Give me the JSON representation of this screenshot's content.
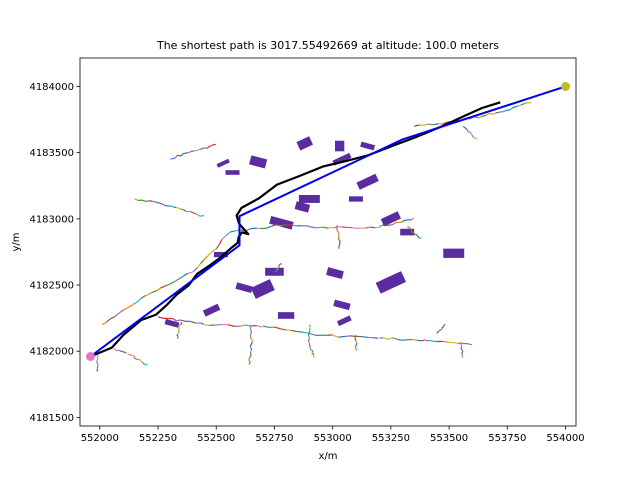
{
  "chart_data": {
    "type": "line",
    "title": "The shortest path is 3017.55492669 at altitude: 100.0 meters",
    "xlabel": "x/m",
    "ylabel": "y/m",
    "xlim": [
      551915,
      554045
    ],
    "ylim": [
      4181435,
      4184215
    ],
    "x_ticks": [
      552000,
      552250,
      552500,
      552750,
      553000,
      553250,
      553500,
      553750,
      554000
    ],
    "y_ticks": [
      4181500,
      4182000,
      4182500,
      4183000,
      4183500,
      4184000
    ],
    "colors": {
      "shortest_path": "#0000ee",
      "ground_route": "#000000",
      "buildings": "#5a2ca0",
      "start_marker": "#e377c2",
      "end_marker": "#bcbd22"
    },
    "series": [
      {
        "role": "shortest_path",
        "x": [
          551960,
          552600,
          552600,
          553300,
          554000
        ],
        "y": [
          4181960,
          4182800,
          4183020,
          4183600,
          4184000
        ]
      },
      {
        "role": "ground_route",
        "x": [
          551960,
          552050,
          552100,
          552180,
          552240,
          552290,
          552330,
          552380,
          552420,
          552470,
          552520,
          552560,
          552590,
          552600,
          552610,
          552640,
          552600,
          552590,
          552610,
          552680,
          552760,
          552850,
          552960,
          553060,
          553150,
          553260,
          553360,
          553470,
          553560,
          553640,
          553720
        ],
        "y": [
          4181960,
          4182030,
          4182130,
          4182230,
          4182280,
          4182350,
          4182430,
          4182500,
          4182580,
          4182650,
          4182700,
          4182780,
          4182820,
          4182860,
          4182900,
          4182880,
          4182960,
          4183020,
          4183080,
          4183160,
          4183260,
          4183320,
          4183400,
          4183440,
          4183480,
          4183560,
          4183620,
          4183700,
          4183780,
          4183840,
          4183880
        ]
      },
      {
        "role": "start_marker",
        "x": [
          551960
        ],
        "y": [
          4181960
        ]
      },
      {
        "role": "end_marker",
        "x": [
          554000
        ],
        "y": [
          4184000
        ]
      }
    ],
    "buildings": [
      {
        "cx": 552530,
        "cy": 4183420,
        "w": 55,
        "h": 30
      },
      {
        "cx": 552570,
        "cy": 4183350,
        "w": 60,
        "h": 35
      },
      {
        "cx": 552680,
        "cy": 4183430,
        "w": 70,
        "h": 70
      },
      {
        "cx": 552880,
        "cy": 4183570,
        "w": 60,
        "h": 70
      },
      {
        "cx": 553030,
        "cy": 4183550,
        "w": 40,
        "h": 80
      },
      {
        "cx": 553150,
        "cy": 4183550,
        "w": 60,
        "h": 40
      },
      {
        "cx": 553040,
        "cy": 4183450,
        "w": 80,
        "h": 40
      },
      {
        "cx": 552900,
        "cy": 4183150,
        "w": 90,
        "h": 60
      },
      {
        "cx": 552870,
        "cy": 4183090,
        "w": 60,
        "h": 60
      },
      {
        "cx": 553150,
        "cy": 4183280,
        "w": 90,
        "h": 60
      },
      {
        "cx": 553100,
        "cy": 4183150,
        "w": 60,
        "h": 40
      },
      {
        "cx": 552780,
        "cy": 4182970,
        "w": 100,
        "h": 60
      },
      {
        "cx": 553250,
        "cy": 4183000,
        "w": 80,
        "h": 60
      },
      {
        "cx": 553320,
        "cy": 4182900,
        "w": 60,
        "h": 50
      },
      {
        "cx": 552620,
        "cy": 4182480,
        "w": 70,
        "h": 50
      },
      {
        "cx": 552700,
        "cy": 4182470,
        "w": 90,
        "h": 90
      },
      {
        "cx": 552750,
        "cy": 4182600,
        "w": 80,
        "h": 60
      },
      {
        "cx": 553010,
        "cy": 4182590,
        "w": 70,
        "h": 60
      },
      {
        "cx": 553250,
        "cy": 4182520,
        "w": 120,
        "h": 90
      },
      {
        "cx": 553520,
        "cy": 4182740,
        "w": 90,
        "h": 70
      },
      {
        "cx": 552310,
        "cy": 4182210,
        "w": 60,
        "h": 40
      },
      {
        "cx": 552480,
        "cy": 4182310,
        "w": 70,
        "h": 50
      },
      {
        "cx": 552800,
        "cy": 4182270,
        "w": 70,
        "h": 50
      },
      {
        "cx": 553040,
        "cy": 4182350,
        "w": 70,
        "h": 50
      },
      {
        "cx": 553050,
        "cy": 4182230,
        "w": 60,
        "h": 40
      },
      {
        "cx": 552520,
        "cy": 4182730,
        "w": 60,
        "h": 40
      }
    ]
  }
}
